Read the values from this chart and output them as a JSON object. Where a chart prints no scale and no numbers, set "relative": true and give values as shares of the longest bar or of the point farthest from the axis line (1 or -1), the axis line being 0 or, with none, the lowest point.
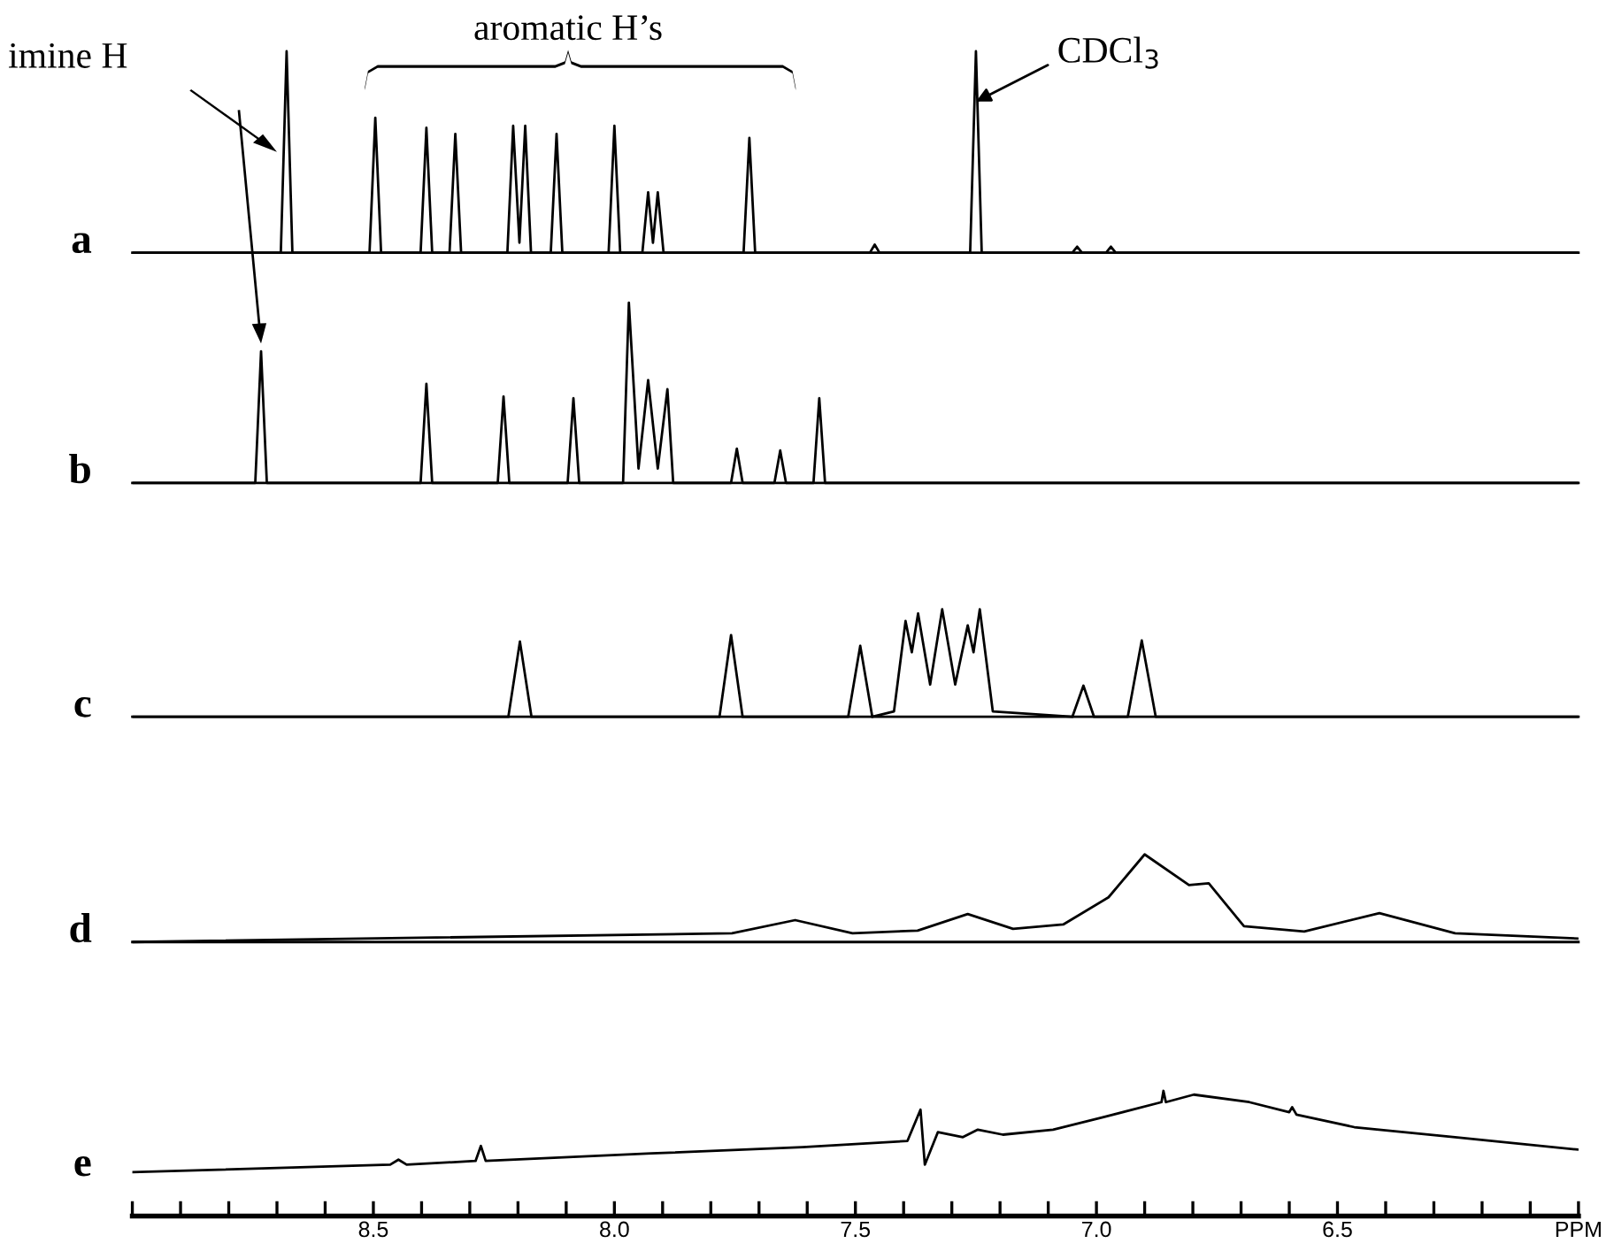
{
  "chart_data": [
    {
      "type": "line",
      "relative": true,
      "xlim": [
        9.0,
        6.0
      ],
      "tick_labels": false,
      "x": [
        9.0,
        8.692,
        8.68,
        8.668,
        8.508,
        8.496,
        8.484,
        8.402,
        8.39,
        8.378,
        8.342,
        8.33,
        8.318,
        8.222,
        8.21,
        8.197,
        8.185,
        8.173,
        8.132,
        8.12,
        8.108,
        8.012,
        8.0,
        7.988,
        7.942,
        7.93,
        7.92,
        7.91,
        7.898,
        7.732,
        7.72,
        7.708,
        7.47,
        7.46,
        7.45,
        7.262,
        7.25,
        7.238,
        7.05,
        7.04,
        7.03,
        6.98,
        6.97,
        6.96,
        6.0
      ],
      "series": [
        {
          "name": "a",
          "color": "#000000",
          "values": [
            0,
            0,
            1.0,
            0,
            0,
            0.67,
            0,
            0,
            0.62,
            0,
            0,
            0.59,
            0,
            0,
            0.63,
            0.05,
            0.63,
            0,
            0,
            0.59,
            0,
            0,
            0.63,
            0,
            0,
            0.3,
            0.05,
            0.3,
            0,
            0,
            0.57,
            0,
            0,
            0.04,
            0,
            0,
            1.0,
            0,
            0,
            0.03,
            0,
            0,
            0.03,
            0,
            0
          ]
        }
      ],
      "annotations": [
        "imine H",
        "aromatic H’s",
        {
          "text": "CDCl$_{3}$",
          "x": 7.25,
          "y": 0.75
        }
      ]
    },
    {
      "type": "line",
      "relative": true,
      "xlim": [
        9.0,
        6.0
      ],
      "tick_labels": false,
      "x": [
        9.0,
        8.745,
        8.733,
        8.721,
        8.402,
        8.39,
        8.378,
        8.242,
        8.23,
        8.218,
        8.097,
        8.085,
        8.073,
        7.982,
        7.97,
        7.95,
        7.93,
        7.91,
        7.89,
        7.878,
        7.758,
        7.746,
        7.734,
        7.668,
        7.656,
        7.644,
        7.587,
        7.575,
        7.563,
        6.0
      ],
      "series": [
        {
          "name": "b",
          "color": "#000000",
          "values": [
            0,
            0,
            0.73,
            0,
            0,
            0.55,
            0,
            0,
            0.48,
            0,
            0,
            0.47,
            0,
            0,
            1.0,
            0.08,
            0.57,
            0.08,
            0.52,
            0,
            0,
            0.19,
            0,
            0,
            0.18,
            0,
            0,
            0.47,
            0,
            0
          ]
        }
      ]
    },
    {
      "type": "line",
      "relative": true,
      "xlim": [
        9.0,
        6.0
      ],
      "tick_labels": false,
      "x": [
        9.0,
        8.22,
        8.196,
        8.172,
        7.782,
        7.758,
        7.734,
        7.515,
        7.49,
        7.465,
        7.42,
        7.396,
        7.383,
        7.37,
        7.345,
        7.32,
        7.293,
        7.267,
        7.255,
        7.242,
        7.215,
        7.05,
        7.027,
        7.005,
        6.935,
        6.906,
        6.877,
        6.0
      ],
      "series": [
        {
          "name": "c",
          "color": "#000000",
          "values": [
            0,
            0,
            0.7,
            0,
            0,
            0.76,
            0,
            0,
            0.66,
            0,
            0.05,
            0.89,
            0.6,
            0.96,
            0.3,
            1.0,
            0.3,
            0.85,
            0.6,
            1.0,
            0.05,
            0,
            0.29,
            0,
            0,
            0.71,
            0,
            0
          ]
        }
      ]
    },
    {
      "type": "line",
      "relative": true,
      "xlim": [
        9.0,
        6.0
      ],
      "tick_labels": false,
      "x": [
        9.0,
        7.756,
        7.625,
        7.506,
        7.371,
        7.267,
        7.173,
        7.069,
        6.975,
        6.9,
        6.808,
        6.767,
        6.694,
        6.569,
        6.413,
        6.256,
        6.0
      ],
      "series": [
        {
          "name": "d",
          "color": "#000000",
          "values": [
            0,
            0.1,
            0.25,
            0.1,
            0.13,
            0.32,
            0.15,
            0.2,
            0.51,
            1.0,
            0.65,
            0.67,
            0.18,
            0.12,
            0.33,
            0.1,
            0.04
          ]
        }
      ]
    },
    {
      "type": "line",
      "relative": true,
      "xlim": [
        9.0,
        6.0
      ],
      "tick_labels": "x",
      "xticks": [
        {
          "value": 9.0,
          "label": null
        },
        {
          "value": 8.9,
          "label": null
        },
        {
          "value": 8.8,
          "label": null
        },
        {
          "value": 8.7,
          "label": null
        },
        {
          "value": 8.6,
          "label": null
        },
        {
          "value": 8.5,
          "label": "8.5"
        },
        {
          "value": 8.4,
          "label": null
        },
        {
          "value": 8.3,
          "label": null
        },
        {
          "value": 8.2,
          "label": null
        },
        {
          "value": 8.1,
          "label": null
        },
        {
          "value": 8.0,
          "label": "8.0"
        },
        {
          "value": 7.9,
          "label": null
        },
        {
          "value": 7.8,
          "label": null
        },
        {
          "value": 7.7,
          "label": null
        },
        {
          "value": 7.6,
          "label": null
        },
        {
          "value": 7.5,
          "label": "7.5"
        },
        {
          "value": 7.4,
          "label": null
        },
        {
          "value": 7.3,
          "label": null
        },
        {
          "value": 7.2,
          "label": null
        },
        {
          "value": 7.1,
          "label": null
        },
        {
          "value": 7.0,
          "label": "7.0"
        },
        {
          "value": 6.9,
          "label": null
        },
        {
          "value": 6.8,
          "label": null
        },
        {
          "value": 6.7,
          "label": null
        },
        {
          "value": 6.6,
          "label": null
        },
        {
          "value": 6.5,
          "label": "6.5"
        },
        {
          "value": 6.4,
          "label": null
        },
        {
          "value": 6.3,
          "label": null
        },
        {
          "value": 6.2,
          "label": null
        },
        {
          "value": 6.1,
          "label": null
        },
        {
          "value": 6.0,
          "label": "PPM"
        }
      ],
      "x": [
        9.0,
        8.465,
        8.448,
        8.431,
        8.288,
        8.277,
        8.267,
        7.923,
        7.61,
        7.392,
        7.365,
        7.356,
        7.329,
        7.277,
        7.246,
        7.194,
        7.09,
        6.985,
        6.865,
        6.861,
        6.856,
        6.798,
        6.683,
        6.6,
        6.594,
        6.585,
        6.465,
        6.256,
        6.0
      ],
      "series": [
        {
          "name": "e",
          "color": "#000000",
          "values": [
            0.35,
            0.41,
            0.45,
            0.41,
            0.44,
            0.56,
            0.44,
            0.5,
            0.55,
            0.6,
            0.85,
            0.41,
            0.67,
            0.63,
            0.69,
            0.65,
            0.69,
            0.79,
            0.91,
            1.0,
            0.91,
            0.97,
            0.91,
            0.83,
            0.87,
            0.81,
            0.71,
            0.63,
            0.53
          ]
        }
      ]
    }
  ]
}
